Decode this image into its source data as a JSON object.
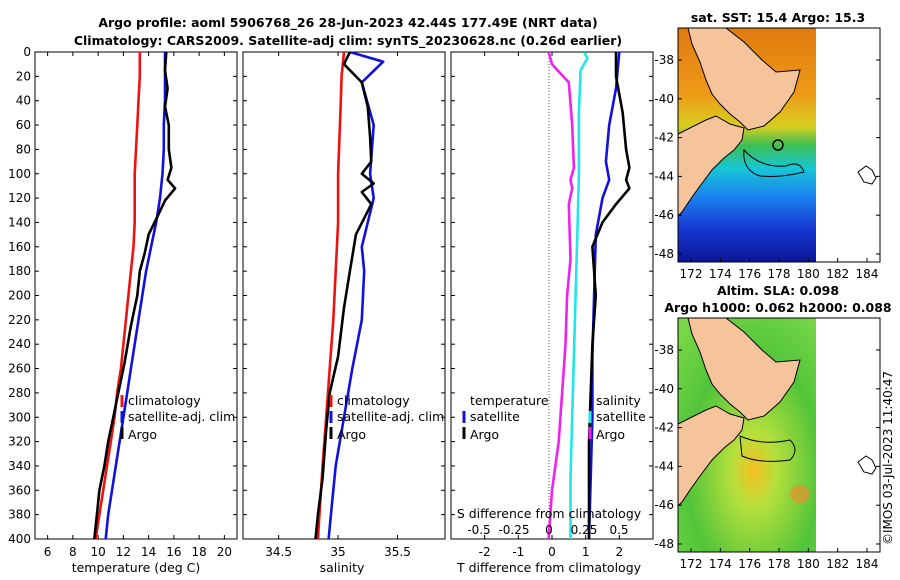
{
  "header": {
    "title_line1": "Argo profile: aoml 5906768_26 28-Jun-2023 42.44S 177.49E (NRT data)",
    "title_line2": "Climatology: CARS2009. Satellite-adj clim: synTS_20230628.nc (0.26d earlier)",
    "credit": "©IMOS 03-Jul-2023 11:40:47"
  },
  "colors": {
    "climatology": "#ee1111",
    "satellite": "#1111dd",
    "argo": "#000000",
    "salinity_satellite": "#22e6e6",
    "salinity_argo": "#ee22ee",
    "land": "#f5c49a"
  },
  "chart_data": [
    {
      "id": "temperature",
      "type": "line",
      "xlabel": "temperature (deg C)",
      "ylabel": "",
      "xlim": [
        5,
        21
      ],
      "ylim": [
        400,
        0
      ],
      "xticks": [
        6,
        8,
        10,
        12,
        14,
        16,
        18,
        20
      ],
      "yticks": [
        0,
        20,
        40,
        60,
        80,
        100,
        120,
        140,
        160,
        180,
        200,
        220,
        240,
        260,
        280,
        300,
        320,
        340,
        360,
        380,
        400
      ],
      "legend": [
        "climatology",
        "satellite-adj. clim",
        "Argo"
      ],
      "legend_position": "right-lower",
      "series": [
        {
          "name": "climatology",
          "color": "#ee1111",
          "points": [
            [
              13.3,
              0
            ],
            [
              13.3,
              20
            ],
            [
              13.2,
              40
            ],
            [
              13.1,
              60
            ],
            [
              13.0,
              80
            ],
            [
              12.9,
              100
            ],
            [
              12.9,
              120
            ],
            [
              12.9,
              140
            ],
            [
              12.8,
              160
            ],
            [
              12.6,
              180
            ],
            [
              12.4,
              200
            ],
            [
              12.2,
              220
            ],
            [
              12.0,
              240
            ],
            [
              11.8,
              260
            ],
            [
              11.5,
              280
            ],
            [
              11.3,
              300
            ],
            [
              11.0,
              320
            ],
            [
              10.7,
              340
            ],
            [
              10.4,
              360
            ],
            [
              10.1,
              380
            ],
            [
              9.8,
              400
            ]
          ]
        },
        {
          "name": "satellite-adj. clim",
          "color": "#1111dd",
          "points": [
            [
              15.3,
              0
            ],
            [
              15.3,
              20
            ],
            [
              15.3,
              40
            ],
            [
              15.2,
              60
            ],
            [
              15.2,
              80
            ],
            [
              15.1,
              100
            ],
            [
              14.9,
              120
            ],
            [
              14.6,
              140
            ],
            [
              14.2,
              160
            ],
            [
              13.8,
              180
            ],
            [
              13.5,
              200
            ],
            [
              13.2,
              220
            ],
            [
              12.9,
              240
            ],
            [
              12.6,
              260
            ],
            [
              12.3,
              280
            ],
            [
              12.0,
              300
            ],
            [
              11.7,
              320
            ],
            [
              11.4,
              340
            ],
            [
              11.1,
              360
            ],
            [
              10.8,
              380
            ],
            [
              10.6,
              400
            ]
          ]
        },
        {
          "name": "Argo",
          "color": "#000000",
          "points": [
            [
              15.4,
              0
            ],
            [
              15.3,
              15
            ],
            [
              15.5,
              30
            ],
            [
              15.3,
              45
            ],
            [
              15.6,
              60
            ],
            [
              15.6,
              80
            ],
            [
              15.8,
              95
            ],
            [
              15.5,
              105
            ],
            [
              16.1,
              112
            ],
            [
              15.3,
              122
            ],
            [
              14.7,
              135
            ],
            [
              14.0,
              150
            ],
            [
              13.7,
              165
            ],
            [
              13.3,
              180
            ],
            [
              13.1,
              200
            ],
            [
              12.6,
              225
            ],
            [
              12.1,
              255
            ],
            [
              11.6,
              280
            ],
            [
              11.2,
              300
            ],
            [
              10.8,
              320
            ],
            [
              10.5,
              340
            ],
            [
              10.1,
              360
            ],
            [
              9.9,
              380
            ],
            [
              9.7,
              400
            ]
          ]
        }
      ]
    },
    {
      "id": "salinity",
      "type": "line",
      "xlabel": "salinity",
      "ylabel": "",
      "xlim": [
        34.2,
        35.9
      ],
      "ylim": [
        400,
        0
      ],
      "xticks": [
        34.5,
        35,
        35.5
      ],
      "xticklabels": [
        "34.5",
        "35",
        "35.5"
      ],
      "legend": [
        "climatology",
        "satellite-adj. clim",
        "Argo"
      ],
      "legend_position": "right-lower",
      "series": [
        {
          "name": "climatology",
          "color": "#ee1111",
          "points": [
            [
              35.05,
              0
            ],
            [
              35.03,
              20
            ],
            [
              35.02,
              50
            ],
            [
              35.0,
              100
            ],
            [
              35.0,
              140
            ],
            [
              34.98,
              180
            ],
            [
              34.96,
              220
            ],
            [
              34.93,
              260
            ],
            [
              34.9,
              300
            ],
            [
              34.87,
              340
            ],
            [
              34.85,
              370
            ],
            [
              34.83,
              400
            ]
          ]
        },
        {
          "name": "satellite-adj. clim",
          "color": "#1111dd",
          "points": [
            [
              35.1,
              0
            ],
            [
              35.38,
              8
            ],
            [
              35.2,
              25
            ],
            [
              35.3,
              60
            ],
            [
              35.27,
              100
            ],
            [
              35.3,
              120
            ],
            [
              35.2,
              160
            ],
            [
              35.22,
              180
            ],
            [
              35.2,
              220
            ],
            [
              35.12,
              260
            ],
            [
              35.05,
              300
            ],
            [
              34.98,
              340
            ],
            [
              34.95,
              370
            ],
            [
              34.92,
              400
            ]
          ]
        },
        {
          "name": "Argo",
          "color": "#000000",
          "points": [
            [
              35.1,
              0
            ],
            [
              35.05,
              10
            ],
            [
              35.2,
              25
            ],
            [
              35.25,
              45
            ],
            [
              35.27,
              70
            ],
            [
              35.28,
              90
            ],
            [
              35.2,
              100
            ],
            [
              35.3,
              108
            ],
            [
              35.2,
              115
            ],
            [
              35.28,
              125
            ],
            [
              35.15,
              150
            ],
            [
              35.1,
              180
            ],
            [
              35.05,
              210
            ],
            [
              35.0,
              250
            ],
            [
              34.93,
              280
            ],
            [
              34.9,
              310
            ],
            [
              34.87,
              350
            ],
            [
              34.83,
              380
            ],
            [
              34.81,
              400
            ]
          ]
        }
      ]
    },
    {
      "id": "difference",
      "type": "line",
      "xlabel": "T difference from climatology",
      "ylabel": "",
      "xlim": [
        -3,
        3
      ],
      "ylim": [
        400,
        0
      ],
      "xticks": [
        -2,
        -1,
        0,
        1,
        2
      ],
      "xticklabels": [
        "-2",
        "-1",
        "0",
        "1",
        "2"
      ],
      "secondary_xlabel": "S difference from climatology",
      "secondary_xticklabels": [
        "-0.5",
        "-0.25",
        "0",
        "0.25",
        "0.5"
      ],
      "secondary_xticks": [
        -0.5,
        -0.25,
        0,
        0.25,
        0.5
      ],
      "legend_left_title": "temperature",
      "legend_left": [
        "satellite",
        "Argo"
      ],
      "legend_right_title": "salinity",
      "legend_right": [
        "satellite",
        "Argo"
      ],
      "series": [
        {
          "name": "T satellite",
          "color": "#1111dd",
          "points": [
            [
              2.0,
              0
            ],
            [
              1.9,
              30
            ],
            [
              1.7,
              60
            ],
            [
              1.6,
              90
            ],
            [
              1.7,
              105
            ],
            [
              1.5,
              120
            ],
            [
              1.3,
              150
            ],
            [
              1.25,
              200
            ],
            [
              1.2,
              250
            ],
            [
              1.2,
              300
            ],
            [
              1.15,
              350
            ],
            [
              1.1,
              400
            ]
          ]
        },
        {
          "name": "T Argo",
          "color": "#000000",
          "points": [
            [
              1.9,
              0
            ],
            [
              1.9,
              20
            ],
            [
              2.1,
              50
            ],
            [
              2.2,
              80
            ],
            [
              2.3,
              95
            ],
            [
              2.2,
              105
            ],
            [
              2.3,
              112
            ],
            [
              1.9,
              125
            ],
            [
              1.5,
              140
            ],
            [
              1.2,
              160
            ],
            [
              1.3,
              200
            ],
            [
              1.2,
              240
            ],
            [
              1.15,
              280
            ],
            [
              1.1,
              320
            ],
            [
              1.1,
              360
            ],
            [
              1.1,
              400
            ]
          ]
        },
        {
          "name": "S satellite",
          "color": "#22e6e6",
          "points": [
            [
              0.95,
              0
            ],
            [
              1.05,
              5
            ],
            [
              0.85,
              15
            ],
            [
              0.8,
              50
            ],
            [
              0.8,
              100
            ],
            [
              0.75,
              150
            ],
            [
              0.7,
              200
            ],
            [
              0.65,
              250
            ],
            [
              0.6,
              300
            ],
            [
              0.55,
              350
            ],
            [
              0.55,
              400
            ]
          ]
        },
        {
          "name": "S Argo",
          "color": "#ee22ee",
          "points": [
            [
              -0.1,
              0
            ],
            [
              0.0,
              10
            ],
            [
              0.5,
              25
            ],
            [
              0.6,
              60
            ],
            [
              0.65,
              95
            ],
            [
              0.55,
              105
            ],
            [
              0.6,
              112
            ],
            [
              0.5,
              125
            ],
            [
              0.55,
              170
            ],
            [
              0.45,
              200
            ],
            [
              0.4,
              240
            ],
            [
              0.3,
              280
            ],
            [
              0.2,
              320
            ],
            [
              0.0,
              360
            ],
            [
              -0.1,
              400
            ]
          ]
        }
      ]
    }
  ],
  "maps": [
    {
      "id": "sst_map",
      "title": "sat. SST: 15.4 Argo: 15.3",
      "lon_ticks": [
        "172",
        "174",
        "176",
        "178",
        "180",
        "182",
        "184"
      ],
      "lat_ticks": [
        "-38",
        "-40",
        "-42",
        "-44",
        "-46",
        "-48"
      ]
    },
    {
      "id": "sla_map",
      "title_line1": "Altim. SLA: 0.098",
      "title_line2": "Argo h1000: 0.062 h2000: 0.088",
      "lon_ticks": [
        "172",
        "174",
        "176",
        "178",
        "180",
        "182",
        "184"
      ],
      "lat_ticks": [
        "-38",
        "-40",
        "-42",
        "-44",
        "-46",
        "-48"
      ]
    }
  ]
}
